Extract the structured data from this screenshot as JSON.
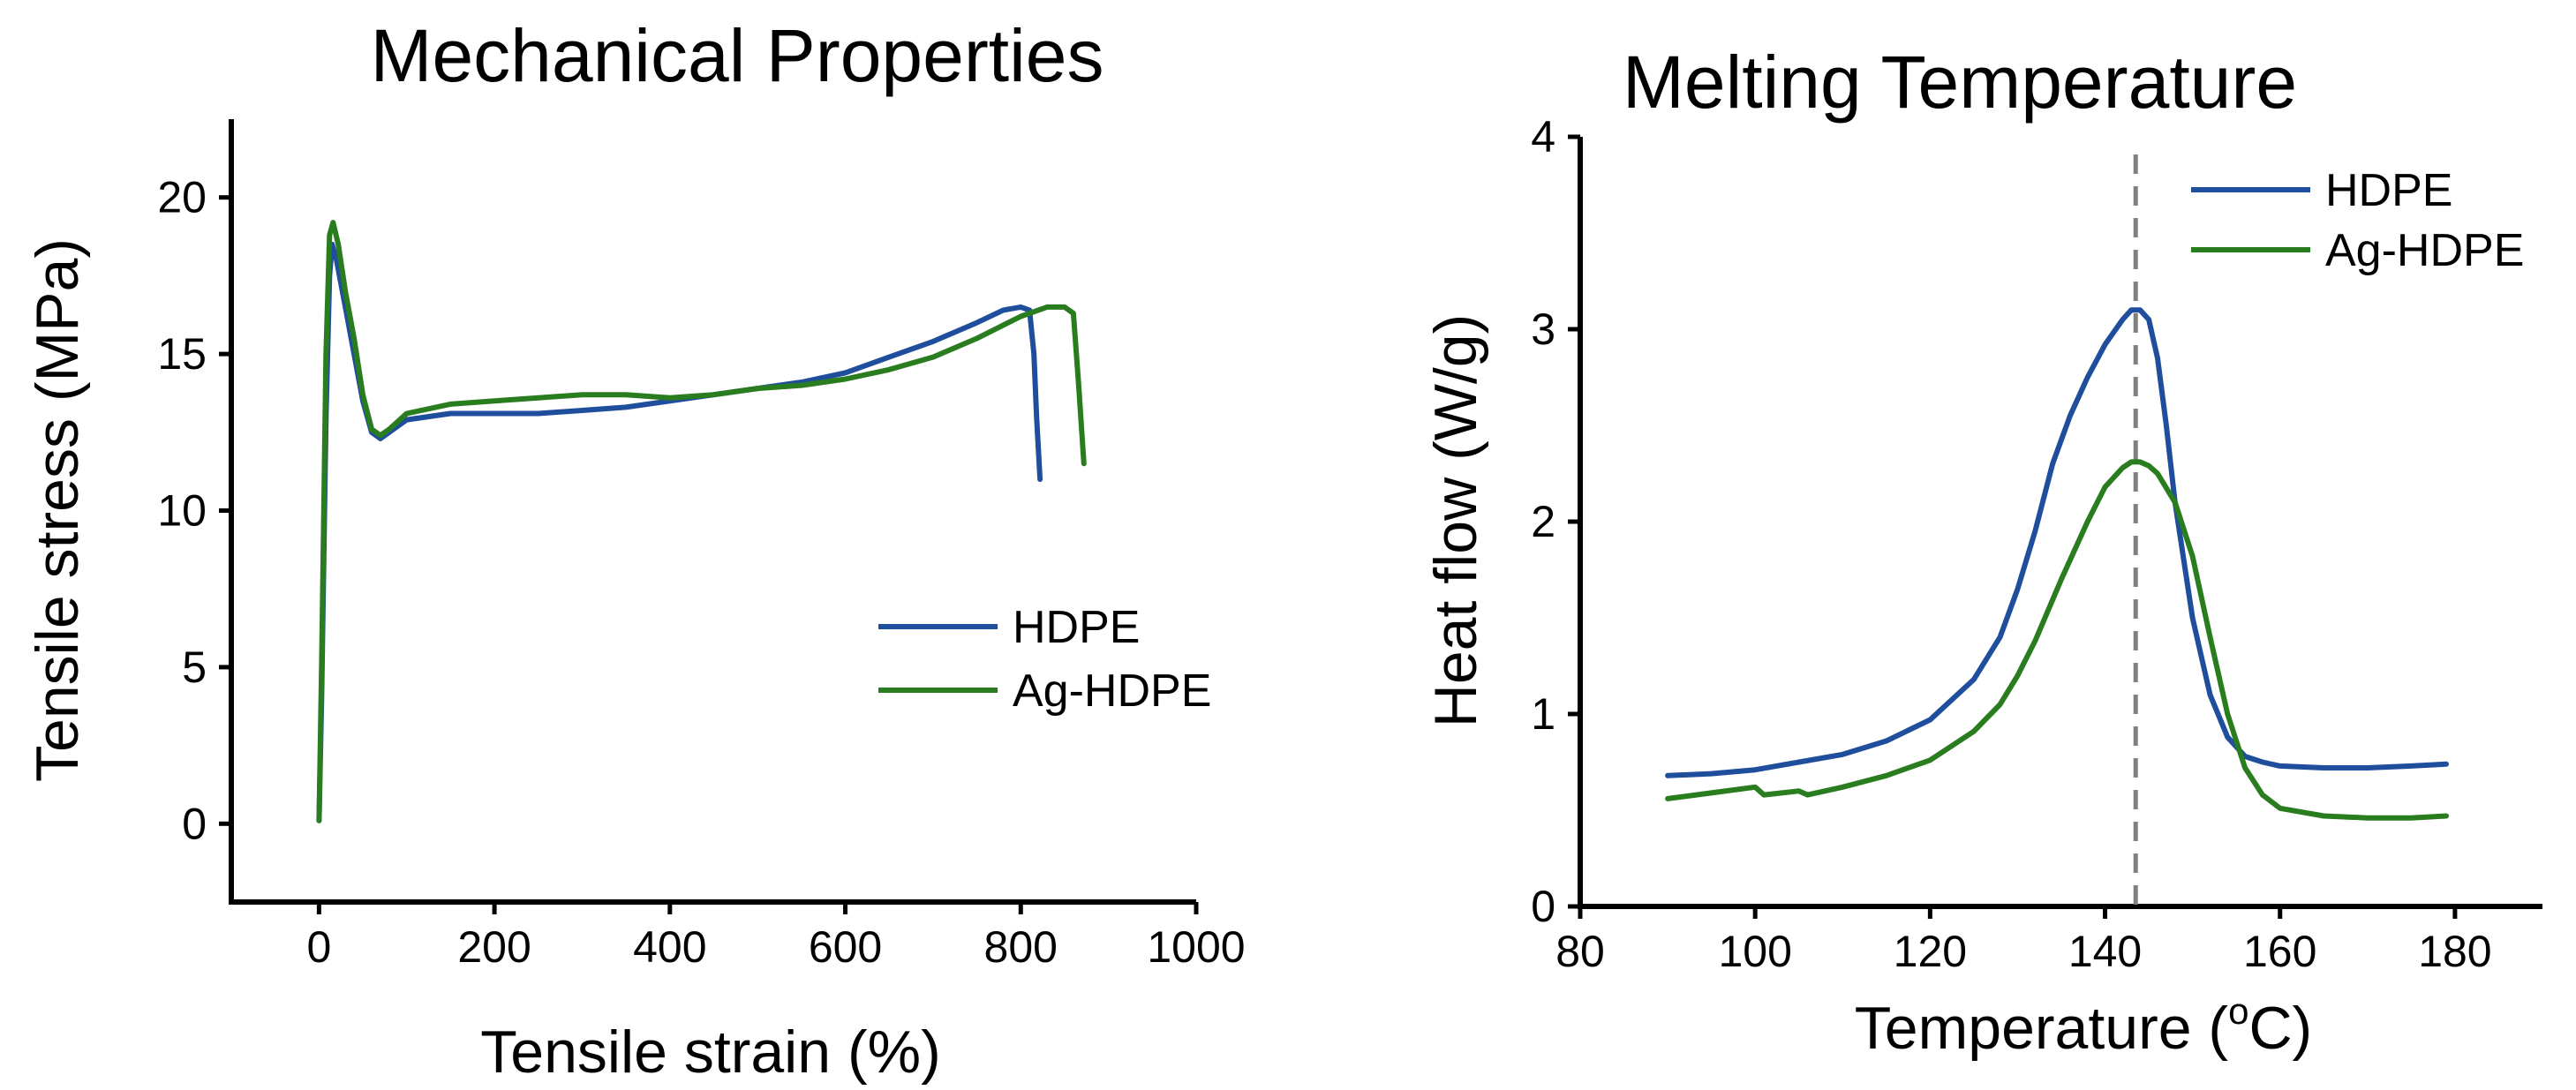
{
  "chart_data": [
    {
      "type": "line",
      "title": "Mechanical Properties",
      "xlabel": "Tensile strain (%)",
      "ylabel": "Tensile stress (MPa)",
      "xlim": [
        -100,
        1000
      ],
      "ylim": [
        -2.5,
        22.5
      ],
      "xticks": [
        0,
        200,
        400,
        600,
        800,
        1000
      ],
      "yticks": [
        0,
        5,
        10,
        15,
        20
      ],
      "grid": false,
      "legend": "center-right",
      "series": [
        {
          "name": "HDPE",
          "color": "#1f4e9c",
          "x": [
            0,
            3,
            8,
            12,
            15,
            20,
            30,
            40,
            50,
            60,
            70,
            80,
            100,
            150,
            200,
            250,
            300,
            350,
            400,
            450,
            500,
            550,
            600,
            650,
            700,
            750,
            780,
            800,
            810,
            815,
            818,
            822
          ],
          "y": [
            0.1,
            4,
            13,
            17.5,
            18.5,
            18,
            16.5,
            15,
            13.5,
            12.5,
            12.3,
            12.5,
            12.9,
            13.1,
            13.1,
            13.1,
            13.2,
            13.3,
            13.5,
            13.7,
            13.9,
            14.1,
            14.4,
            14.9,
            15.4,
            16.0,
            16.4,
            16.5,
            16.4,
            15.0,
            13.0,
            11.0
          ]
        },
        {
          "name": "Ag-HDPE",
          "color": "#2a7d1f",
          "x": [
            0,
            3,
            8,
            12,
            16,
            22,
            30,
            40,
            50,
            60,
            70,
            80,
            100,
            150,
            200,
            250,
            300,
            350,
            400,
            450,
            500,
            550,
            600,
            650,
            700,
            750,
            800,
            830,
            850,
            860,
            866,
            872
          ],
          "y": [
            0.1,
            5,
            15,
            18.8,
            19.2,
            18.5,
            17,
            15.5,
            13.7,
            12.6,
            12.4,
            12.6,
            13.1,
            13.4,
            13.5,
            13.6,
            13.7,
            13.7,
            13.6,
            13.7,
            13.9,
            14.0,
            14.2,
            14.5,
            14.9,
            15.5,
            16.2,
            16.5,
            16.5,
            16.3,
            14.0,
            11.5
          ]
        }
      ]
    },
    {
      "type": "line",
      "title": "Melting Temperature",
      "xlabel": "Temperature (",
      "xlabel_sup": "o",
      "xlabel_tail": "C)",
      "ylabel": "Heat flow (W/g)",
      "xlim": [
        80,
        190
      ],
      "ylim": [
        0,
        4
      ],
      "xticks": [
        80,
        100,
        120,
        140,
        160,
        180
      ],
      "yticks": [
        0,
        1,
        2,
        3,
        4
      ],
      "reference_line": {
        "x": 143.5,
        "style": "dashed",
        "color": "#808080"
      },
      "grid": false,
      "legend": "top-right",
      "series": [
        {
          "name": "HDPE",
          "color": "#1f4e9c",
          "x": [
            90,
            95,
            100,
            105,
            110,
            115,
            120,
            125,
            128,
            130,
            132,
            134,
            136,
            138,
            140,
            142,
            143,
            144,
            145,
            146,
            147,
            148,
            150,
            152,
            154,
            156,
            158,
            160,
            165,
            170,
            175,
            179
          ],
          "y": [
            0.68,
            0.69,
            0.71,
            0.75,
            0.79,
            0.86,
            0.97,
            1.18,
            1.4,
            1.65,
            1.95,
            2.3,
            2.55,
            2.75,
            2.92,
            3.05,
            3.1,
            3.1,
            3.05,
            2.85,
            2.5,
            2.1,
            1.5,
            1.1,
            0.88,
            0.78,
            0.75,
            0.73,
            0.72,
            0.72,
            0.73,
            0.74
          ]
        },
        {
          "name": "Ag-HDPE",
          "color": "#2a7d1f",
          "x": [
            90,
            95,
            100,
            101,
            105,
            106,
            110,
            115,
            120,
            125,
            128,
            130,
            132,
            135,
            138,
            140,
            142,
            143,
            144,
            145,
            146,
            148,
            150,
            152,
            154,
            156,
            158,
            160,
            165,
            170,
            175,
            179
          ],
          "y": [
            0.56,
            0.59,
            0.62,
            0.58,
            0.6,
            0.58,
            0.62,
            0.68,
            0.76,
            0.91,
            1.05,
            1.2,
            1.38,
            1.7,
            2.0,
            2.18,
            2.28,
            2.31,
            2.31,
            2.29,
            2.25,
            2.1,
            1.82,
            1.4,
            1.0,
            0.72,
            0.58,
            0.51,
            0.47,
            0.46,
            0.46,
            0.47
          ]
        }
      ]
    }
  ]
}
